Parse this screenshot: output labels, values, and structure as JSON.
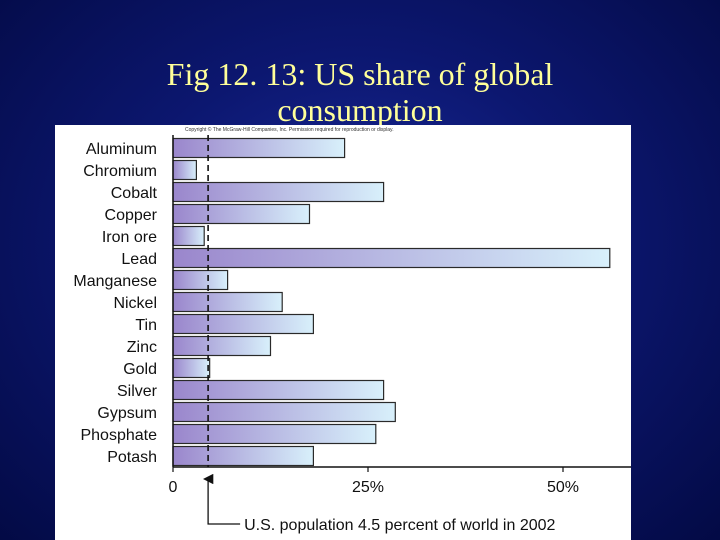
{
  "slide": {
    "title_line1": "Fig 12. 13: US share of global",
    "title_line2": "consumption"
  },
  "figure": {
    "copyright": "Copyright © The McGraw-Hill Companies, Inc. Permission required for reproduction or display."
  },
  "colors": {
    "bar_left": "#9a86cc",
    "bar_right": "#d8f0fb",
    "bar_stroke": "#2a2a2a",
    "title": "#ffff99",
    "background": "#0c1770"
  },
  "chart_data": {
    "type": "bar",
    "orientation": "horizontal",
    "title": "Fig 12. 13: US share of global consumption",
    "categories": [
      "Aluminum",
      "Chromium",
      "Cobalt",
      "Copper",
      "Iron ore",
      "Lead",
      "Manganese",
      "Nickel",
      "Tin",
      "Zinc",
      "Gold",
      "Silver",
      "Gypsum",
      "Phosphate",
      "Potash"
    ],
    "values": [
      22,
      3,
      27,
      17.5,
      4,
      56,
      7,
      14,
      18,
      12.5,
      4.7,
      27,
      28.5,
      26,
      18
    ],
    "unit": "percent of world consumption",
    "xlim": [
      0,
      60
    ],
    "xticks": [
      0,
      25,
      50
    ],
    "xtick_labels": [
      "0",
      "25%",
      "50%"
    ],
    "reference_line": {
      "value": 4.5,
      "label": "U.S. population 4.5 percent of world in 2002"
    }
  }
}
